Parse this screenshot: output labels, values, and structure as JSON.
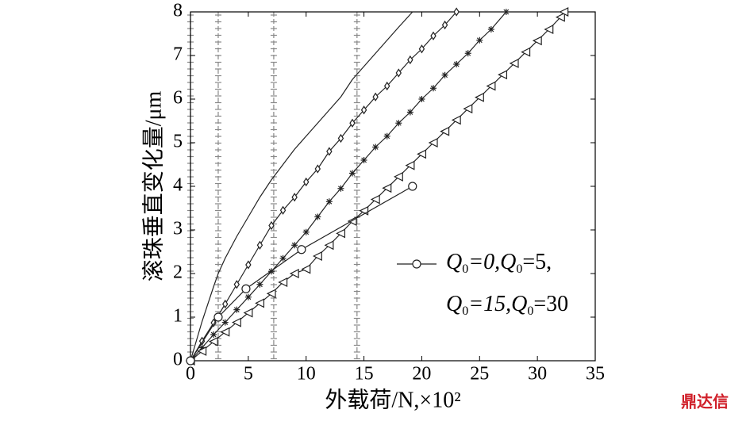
{
  "chart_data": {
    "type": "line",
    "x_label": "外载荷/N,×10²",
    "y_label": "滚珠垂直变化量/μm",
    "xlim": [
      0,
      35
    ],
    "xticks": [
      0,
      5,
      10,
      15,
      20,
      25,
      30,
      35
    ],
    "ylim": [
      0,
      8
    ],
    "yticks": [
      0,
      1,
      2,
      3,
      4,
      5,
      6,
      7,
      8
    ],
    "vlines": [
      0,
      2.4,
      7.2,
      14.4
    ],
    "vline_color": "#888888",
    "series": [
      {
        "marker": "none",
        "color": "#222222",
        "x": [
          0,
          1,
          2,
          2.4,
          3,
          4,
          5,
          6,
          7,
          8,
          9,
          10,
          11,
          12,
          13,
          14,
          15,
          16,
          17,
          18,
          19.2
        ],
        "values": [
          0,
          0.9,
          1.7,
          2.0,
          2.35,
          2.85,
          3.3,
          3.75,
          4.15,
          4.5,
          4.85,
          5.15,
          5.45,
          5.75,
          6.05,
          6.45,
          6.75,
          7.05,
          7.35,
          7.65,
          8.0
        ]
      },
      {
        "marker": "diamond",
        "color": "#222222",
        "x": [
          0,
          1,
          2,
          3,
          4,
          5,
          6,
          7,
          8,
          9,
          10,
          11,
          12,
          13,
          14,
          15,
          16,
          17,
          18,
          19,
          20,
          21,
          22,
          23
        ],
        "values": [
          0,
          0.45,
          0.87,
          1.3,
          1.75,
          2.2,
          2.65,
          3.1,
          3.45,
          3.75,
          4.1,
          4.4,
          4.8,
          5.1,
          5.45,
          5.75,
          6.05,
          6.3,
          6.6,
          6.9,
          7.15,
          7.45,
          7.7,
          8.0
        ]
      },
      {
        "marker": "star",
        "color": "#222222",
        "x": [
          0,
          1,
          2,
          3,
          4,
          5,
          6,
          7,
          8,
          9,
          10,
          11,
          12,
          13,
          14,
          15,
          16,
          17,
          18,
          19,
          20,
          21,
          22,
          23,
          24,
          25,
          26,
          27.3
        ],
        "values": [
          0,
          0.3,
          0.6,
          0.88,
          1.17,
          1.46,
          1.75,
          2.05,
          2.35,
          2.65,
          2.95,
          3.3,
          3.65,
          3.95,
          4.3,
          4.6,
          4.9,
          5.15,
          5.45,
          5.7,
          6.0,
          6.25,
          6.55,
          6.8,
          7.05,
          7.35,
          7.6,
          8.0
        ]
      },
      {
        "marker": "triangle",
        "color": "#222222",
        "x": [
          0,
          1,
          2,
          3,
          4,
          5,
          6,
          7,
          8,
          9,
          10,
          11,
          12,
          13,
          14,
          15,
          16,
          17,
          18,
          19,
          20,
          21,
          22,
          23,
          24,
          25,
          26,
          27,
          28,
          29,
          30,
          31,
          32,
          32.3
        ],
        "values": [
          0,
          0.22,
          0.44,
          0.66,
          0.88,
          1.1,
          1.32,
          1.54,
          1.8,
          2.0,
          2.1,
          2.4,
          2.65,
          2.92,
          3.2,
          3.44,
          3.7,
          3.96,
          4.22,
          4.48,
          4.74,
          5.0,
          5.26,
          5.52,
          5.78,
          6.04,
          6.3,
          6.56,
          6.82,
          7.08,
          7.34,
          7.6,
          7.88,
          8.0
        ]
      },
      {
        "marker": "circle",
        "color": "#222222",
        "x": [
          0,
          2.4,
          4.8,
          9.6,
          19.2
        ],
        "values": [
          0,
          1.0,
          1.65,
          2.55,
          4.0
        ]
      }
    ],
    "legend": {
      "marker": "circle",
      "lines": [
        "Q0=0,Q0=5,",
        "Q0=15,Q0=30"
      ]
    },
    "watermark": "鼎达信"
  }
}
